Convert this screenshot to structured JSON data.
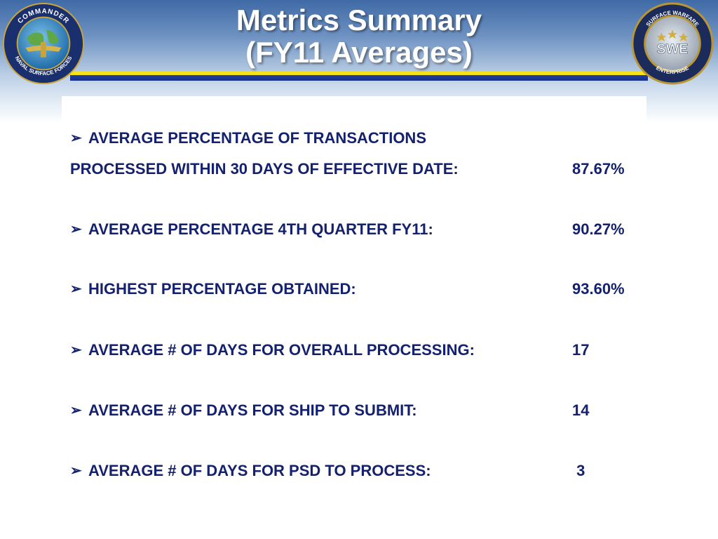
{
  "header": {
    "title_line1": "Metrics Summary",
    "title_line2": "(FY11 Averages)",
    "left_logo": {
      "icon": "navsurfor-seal-icon",
      "text_top": "COMMANDER",
      "text_bottom": "NAVAL SURFACE FORCES"
    },
    "right_logo": {
      "icon": "swe-seal-icon",
      "text_top": "SURFACE WARFARE",
      "text_center": "SWE",
      "text_bottom": "ENTERPRISE"
    }
  },
  "metrics": {
    "bullet_glyph": "➢",
    "items": [
      {
        "label_line1": "AVERAGE PERCENTAGE OF TRANSACTIONS",
        "label_line2": "PROCESSED WITHIN 30 DAYS OF EFFECTIVE DATE:",
        "value": "87.67%"
      },
      {
        "label": "AVERAGE PERCENTAGE 4TH QUARTER FY11:",
        "value": "90.27%"
      },
      {
        "label": "HIGHEST PERCENTAGE OBTAINED:",
        "value": "93.60%"
      },
      {
        "label": "AVERAGE # OF DAYS FOR OVERALL PROCESSING:",
        "value": "17"
      },
      {
        "label": "AVERAGE # OF DAYS FOR SHIP TO SUBMIT:",
        "value": "14"
      },
      {
        "label": "AVERAGE # OF DAYS FOR PSD TO PROCESS:",
        "value": " 3"
      }
    ]
  },
  "colors": {
    "text_navy": "#14216e",
    "stripe_yellow": "#f4e21a",
    "stripe_blue": "#1f3f9c",
    "header_blue": "#3f6aa6"
  }
}
